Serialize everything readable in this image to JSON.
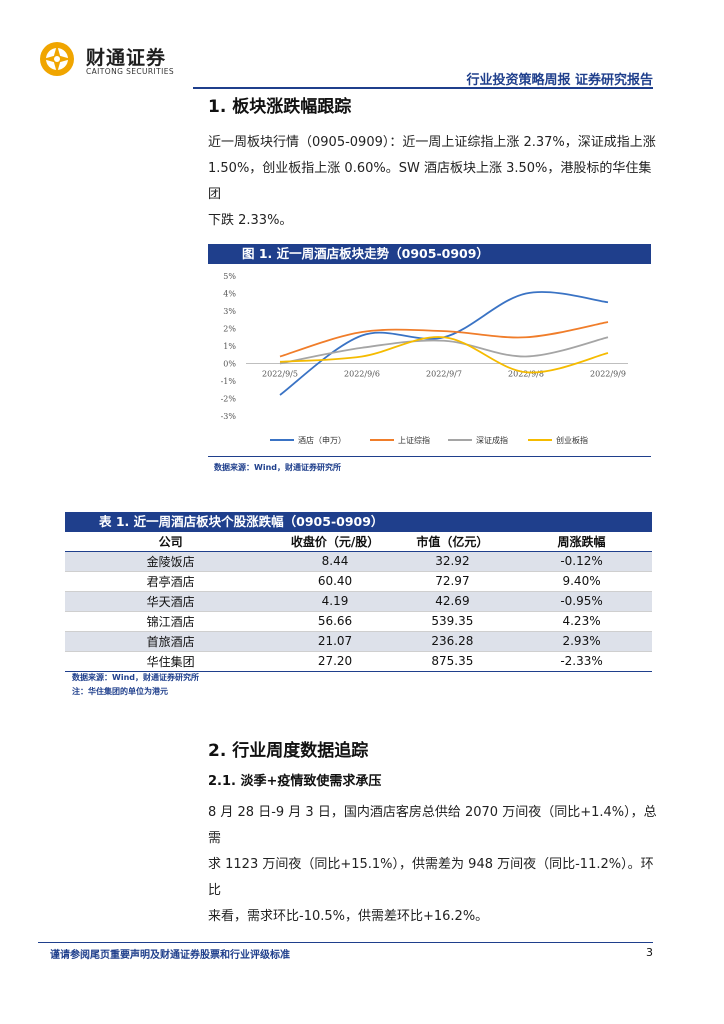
{
  "brand": {
    "name_cn": "财通证券",
    "name_en": "CAITONG SECURITIES",
    "color": "#1f3f8c",
    "logo_color": "#f0a500"
  },
  "header": {
    "title": "行业投资策略周报  证券研究报告"
  },
  "section1": {
    "heading": "1. 板块涨跌幅跟踪",
    "paragraph": [
      "近一周板块行情（0905-0909）：近一周上证综指上涨 2.37%，深证成指上涨",
      "1.50%，创业板指上涨 0.60%。SW 酒店板块上涨 3.50%，港股标的华住集团",
      "下跌 2.33%。"
    ]
  },
  "figure1": {
    "title": "图 1. 近一周酒店板块走势（0905-0909）",
    "source": "数据来源：Wind，财通证券研究所"
  },
  "chart_data": {
    "type": "line",
    "x": [
      "2022/9/5",
      "2022/9/6",
      "2022/9/7",
      "2022/9/8",
      "2022/9/9"
    ],
    "y_ticks": [
      "5%",
      "4%",
      "3%",
      "2%",
      "1%",
      "0%",
      "-1%",
      "-2%",
      "-3%"
    ],
    "ylim": [
      -3,
      5
    ],
    "legend_position": "bottom",
    "series": [
      {
        "name": "酒店（申万）",
        "color": "#3a73c4",
        "values": [
          -1.8,
          1.6,
          1.5,
          4.0,
          3.5
        ]
      },
      {
        "name": "上证综指",
        "color": "#f07d2a",
        "values": [
          0.4,
          1.8,
          1.85,
          1.5,
          2.37
        ]
      },
      {
        "name": "深证成指",
        "color": "#a5a5a5",
        "values": [
          0.0,
          0.9,
          1.3,
          0.4,
          1.5
        ]
      },
      {
        "name": "创业板指",
        "color": "#f5bb00",
        "values": [
          0.1,
          0.4,
          1.5,
          -0.5,
          0.6
        ]
      }
    ]
  },
  "table1": {
    "title": "表 1. 近一周酒店板块个股涨跌幅（0905-0909）",
    "headers": [
      "公司",
      "收盘价（元/股）",
      "市值（亿元）",
      "周涨跌幅"
    ],
    "rows": [
      [
        "金陵饭店",
        "8.44",
        "32.92",
        "-0.12%"
      ],
      [
        "君亭酒店",
        "60.40",
        "72.97",
        "9.40%"
      ],
      [
        "华天酒店",
        "4.19",
        "42.69",
        "-0.95%"
      ],
      [
        "锦江酒店",
        "56.66",
        "539.35",
        "4.23%"
      ],
      [
        "首旅酒店",
        "21.07",
        "236.28",
        "2.93%"
      ],
      [
        "华住集团",
        "27.20",
        "875.35",
        "-2.33%"
      ]
    ],
    "source": "数据来源：Wind，财通证券研究所",
    "note": "注：华住集团的单位为港元"
  },
  "section2": {
    "heading": "2. 行业周度数据追踪",
    "subheading": "2.1. 淡季+疫情致使需求承压",
    "paragraph": [
      "8 月 28 日-9 月 3 日，国内酒店客房总供给 2070 万间夜（同比+1.4%），总需",
      "求 1123 万间夜（同比+15.1%），供需差为 948 万间夜（同比-11.2%）。环比",
      "来看，需求环比-10.5%，供需差环比+16.2%。"
    ]
  },
  "footer": {
    "disclaimer": "谨请参阅尾页重要声明及财通证券股票和行业评级标准",
    "page_number": "3"
  }
}
